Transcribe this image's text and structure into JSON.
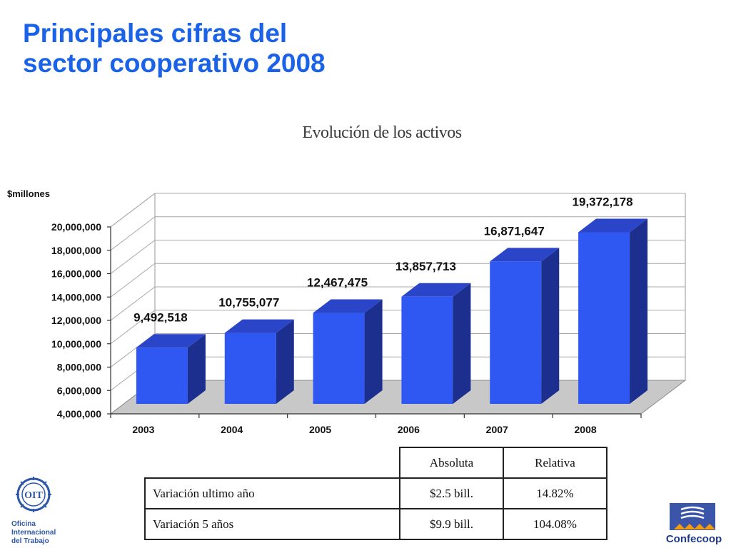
{
  "header": {
    "title_line1": "Principales cifras del",
    "title_line2": "sector cooperativo 2008"
  },
  "chart_data": {
    "type": "bar",
    "title": "Evolución de los activos",
    "ylabel": "$millones",
    "categories": [
      "2003",
      "2004",
      "2005",
      "2006",
      "2007",
      "2008"
    ],
    "values": [
      9492518,
      10755077,
      12467475,
      13857713,
      16871647,
      19372178
    ],
    "value_labels": [
      "9,492,518",
      "10,755,077",
      "12,467,475",
      "13,857,713",
      "16,871,647",
      "19,372,178"
    ],
    "ylim": [
      4000000,
      20000000
    ],
    "yticks": [
      4000000,
      6000000,
      8000000,
      10000000,
      12000000,
      14000000,
      16000000,
      18000000,
      20000000
    ],
    "ytick_labels": [
      "4,000,000",
      "6,000,000",
      "8,000,000",
      "10,000,000",
      "12,000,000",
      "14,000,000",
      "16,000,000",
      "18,000,000",
      "20,000,000"
    ],
    "grid": true,
    "style": "3d-column",
    "colors": {
      "bar_front": "#2f57f2",
      "bar_top": "#2b45c9",
      "bar_side": "#1c2f8e",
      "floor": "#c8c8c8"
    }
  },
  "table": {
    "headers": [
      "Absoluta",
      "Relativa"
    ],
    "rows": [
      {
        "label": "Variación ultimo año",
        "absoluta": "$2.5 bill.",
        "relativa": "14.82%"
      },
      {
        "label": "Variación 5 años",
        "absoluta": "$9.9 bill.",
        "relativa": "104.08%"
      }
    ]
  },
  "logos": {
    "oit_mark": "OIT",
    "oit_text": [
      "Oficina",
      "Internacional",
      "del Trabajo"
    ],
    "confecoop_text": "Confecoop"
  }
}
